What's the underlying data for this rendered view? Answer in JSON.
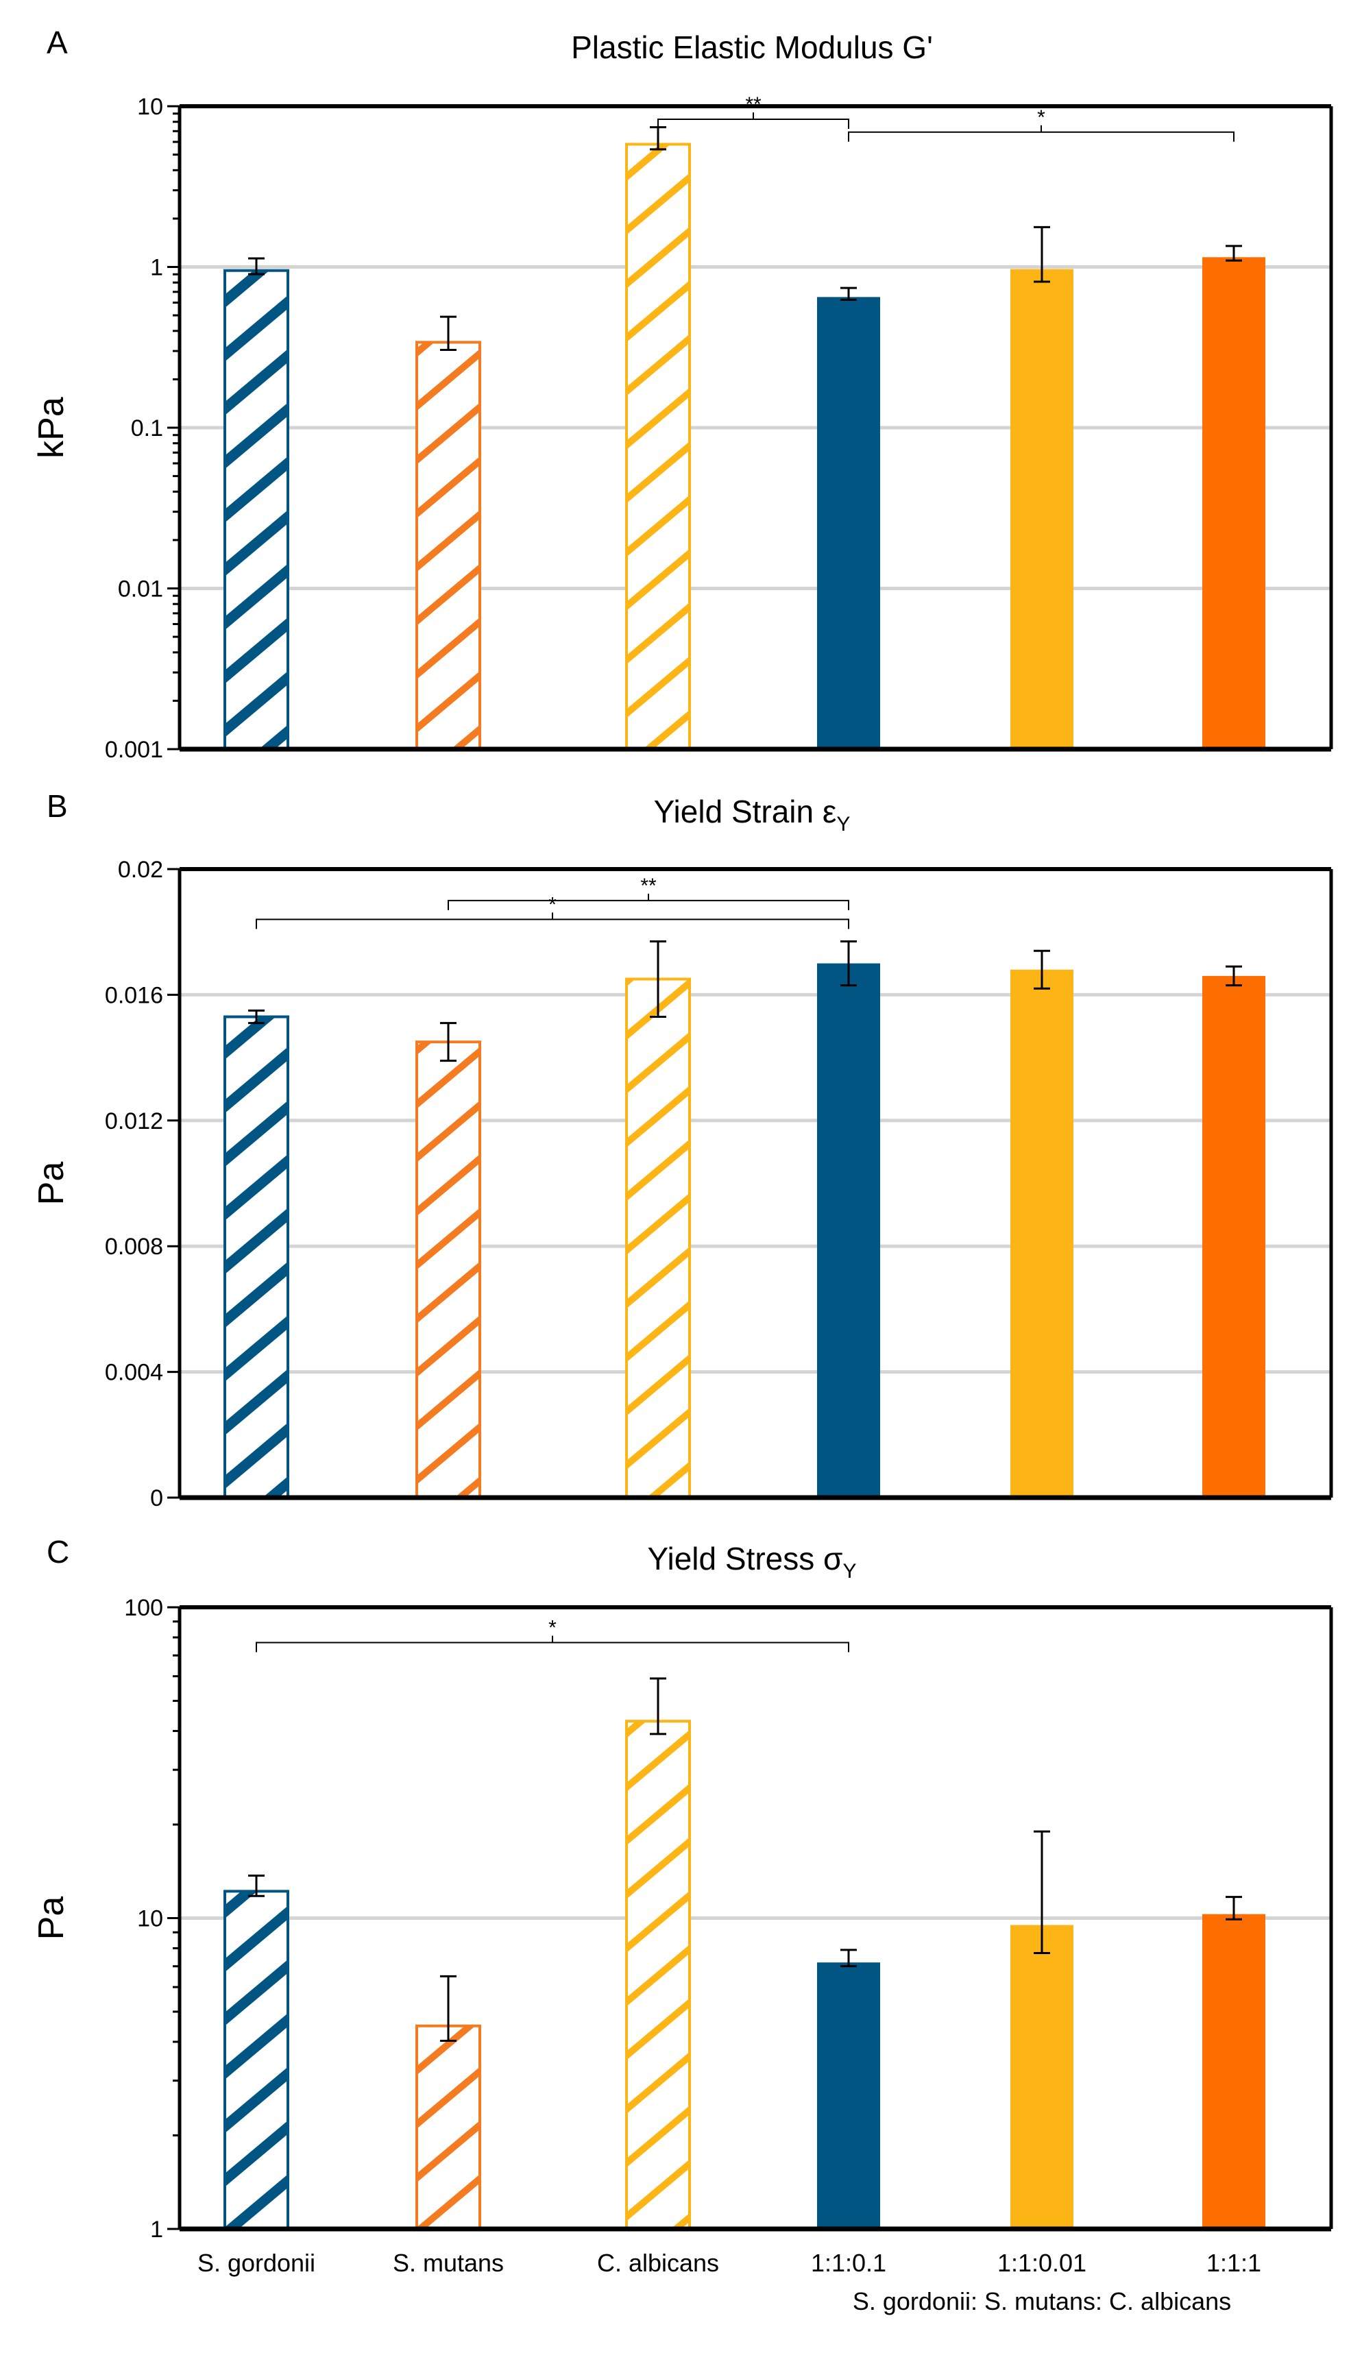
{
  "chart_data": [
    {
      "type": "bar",
      "panel_letter": "A",
      "title": "Plastic Elastic Modulus G'",
      "ylabel": "kPa",
      "yscale": "log",
      "ylim": [
        0.001,
        10
      ],
      "yticks": [
        {
          "value": 0.001,
          "label": "0.001"
        },
        {
          "value": 0.01,
          "label": "0.01"
        },
        {
          "value": 0.1,
          "label": "0.1"
        },
        {
          "value": 1,
          "label": "1"
        },
        {
          "value": 10,
          "label": "10"
        }
      ],
      "grid": true,
      "categories": [
        "S. gordonii",
        "S. mutans",
        "C. albicans",
        "1:1:0.1",
        "1:1:0.01",
        "1:1:1"
      ],
      "values": [
        0.95,
        0.34,
        5.8,
        0.65,
        0.97,
        1.15
      ],
      "errors": [
        0.18,
        0.15,
        1.6,
        0.09,
        0.8,
        0.2
      ],
      "styles": [
        "hatched",
        "hatched",
        "hatched",
        "solid",
        "solid",
        "solid"
      ],
      "colors": [
        "#005582",
        "#f47b20",
        "#fdb515",
        "#005582",
        "#fdb515",
        "#fe6e00"
      ],
      "significance": [
        {
          "from": 2,
          "to": 3,
          "label": "**",
          "value": 8.3
        },
        {
          "from": 3,
          "to": 5,
          "label": "*",
          "value": 6.9
        }
      ]
    },
    {
      "type": "bar",
      "panel_letter": "B",
      "title": "Yield Strain ε",
      "title_subscript": "Y",
      "ylabel": "Pa",
      "yscale": "linear",
      "ylim": [
        0,
        0.02
      ],
      "yticks": [
        {
          "value": 0,
          "label": "0"
        },
        {
          "value": 0.004,
          "label": "0.004"
        },
        {
          "value": 0.008,
          "label": "0.008"
        },
        {
          "value": 0.012,
          "label": "0.012"
        },
        {
          "value": 0.016,
          "label": "0.016"
        },
        {
          "value": 0.02,
          "label": "0.02"
        }
      ],
      "grid": true,
      "categories": [
        "S. gordonii",
        "S. mutans",
        "C. albicans",
        "1:1:0.1",
        "1:1:0.01",
        "1:1:1"
      ],
      "values": [
        0.0153,
        0.0145,
        0.0165,
        0.017,
        0.0168,
        0.0166
      ],
      "errors": [
        0.0002,
        0.0006,
        0.0012,
        0.0007,
        0.0006,
        0.0003
      ],
      "styles": [
        "hatched",
        "hatched",
        "hatched",
        "solid",
        "solid",
        "solid"
      ],
      "colors": [
        "#005582",
        "#f47b20",
        "#fdb515",
        "#005582",
        "#fdb515",
        "#fe6e00"
      ],
      "significance": [
        {
          "from": 0,
          "to": 3,
          "label": "*",
          "value": 0.0184
        },
        {
          "from": 1,
          "to": 3,
          "label": "**",
          "value": 0.019
        }
      ]
    },
    {
      "type": "bar",
      "panel_letter": "C",
      "title": "Yield Stress σ",
      "title_subscript": "Y",
      "ylabel": "Pa",
      "yscale": "log",
      "ylim": [
        1,
        100
      ],
      "yticks": [
        {
          "value": 1,
          "label": "1"
        },
        {
          "value": 10,
          "label": "10"
        },
        {
          "value": 100,
          "label": "100"
        }
      ],
      "grid": true,
      "categories": [
        "S. gordonii",
        "S. mutans",
        "C. albicans",
        "1:1:0.1",
        "1:1:0.01",
        "1:1:1"
      ],
      "values": [
        12.2,
        4.5,
        43,
        7.2,
        9.5,
        10.3
      ],
      "errors": [
        1.5,
        2.0,
        16,
        0.7,
        9.5,
        1.4
      ],
      "styles": [
        "hatched",
        "hatched",
        "hatched",
        "solid",
        "solid",
        "solid"
      ],
      "colors": [
        "#005582",
        "#f47b20",
        "#fdb515",
        "#005582",
        "#fdb515",
        "#fe6e00"
      ],
      "significance": [
        {
          "from": 0,
          "to": 3,
          "label": "*",
          "value": 77
        }
      ],
      "xlabel_sub": "S. gordonii: S. mutans: C. albicans"
    }
  ]
}
